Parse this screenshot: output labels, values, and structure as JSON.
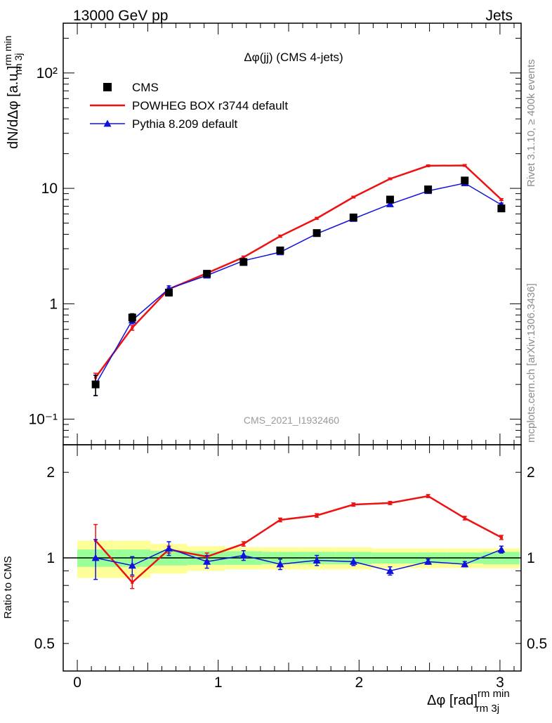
{
  "header": {
    "left": "13000 GeV pp",
    "right": "Jets",
    "side_top": "Rivet 3.1.10, ≥ 400k events",
    "side_bottom": "mcplots.cern.ch [arXiv:1306.3436]"
  },
  "chart_data": [
    {
      "type": "line",
      "title": "Δφ(jj) (CMS 4-jets)",
      "ylabel": "dN/dΔφ [a.u.]",
      "ylabel_sup": "rm min",
      "ylabel_sub": "rm 3j",
      "yscale": "log",
      "xlim": [
        -0.1,
        3.15
      ],
      "ylim": [
        0.06,
        270
      ],
      "y_ticks": [
        {
          "value": 0.1,
          "label": "10⁻¹"
        },
        {
          "value": 1,
          "label": "1"
        },
        {
          "value": 10,
          "label": "10"
        },
        {
          "value": 100,
          "label": "10²"
        }
      ],
      "watermark": "CMS_2021_I1932460",
      "legend_position": "top-left",
      "x": [
        0.13,
        0.39,
        0.65,
        0.92,
        1.18,
        1.44,
        1.7,
        1.96,
        2.22,
        2.49,
        2.75,
        3.01
      ],
      "series": [
        {
          "name": "CMS",
          "marker": "square",
          "color": "#000000",
          "values": [
            0.2,
            0.76,
            1.25,
            1.82,
            2.3,
            2.9,
            4.1,
            5.6,
            8.0,
            9.8,
            11.7,
            6.7
          ],
          "errors": [
            0.04,
            0.06,
            0.08,
            0.1,
            0.12,
            0.15,
            0.2,
            0.25,
            0.35,
            0.4,
            0.5,
            0.3
          ]
        },
        {
          "name": "POWHEG BOX r3744 default",
          "marker": "line",
          "color": "#ee1111",
          "values": [
            0.23,
            0.62,
            1.34,
            1.84,
            2.53,
            3.85,
            5.5,
            8.4,
            12.1,
            15.7,
            15.8,
            8.0
          ],
          "errors": [
            0.02,
            0.03,
            0.04,
            0.05,
            0.06,
            0.08,
            0.1,
            0.14,
            0.2,
            0.25,
            0.25,
            0.15
          ]
        },
        {
          "name": "Pythia 8.209 default",
          "marker": "triangle",
          "color": "#1111dd",
          "values": [
            0.2,
            0.72,
            1.35,
            1.76,
            2.36,
            2.8,
            4.04,
            5.45,
            7.3,
            9.5,
            11.1,
            7.2
          ],
          "errors": [
            0.04,
            0.05,
            0.08,
            0.08,
            0.1,
            0.12,
            0.15,
            0.2,
            0.25,
            0.3,
            0.35,
            0.25
          ]
        }
      ]
    },
    {
      "type": "line",
      "ylabel": "Ratio to CMS",
      "xlabel": "Δφ [rad]",
      "xlabel_sup": "rm min",
      "xlabel_sub": "rm 3j",
      "yscale": "log",
      "xlim": [
        -0.1,
        3.15
      ],
      "ylim": [
        0.4,
        2.5
      ],
      "y_ticks": [
        {
          "value": 0.5,
          "label": "0.5"
        },
        {
          "value": 1,
          "label": "1"
        },
        {
          "value": 2,
          "label": "2"
        }
      ],
      "x_ticks": [
        {
          "value": 0,
          "label": "0"
        },
        {
          "value": 1,
          "label": "1"
        },
        {
          "value": 2,
          "label": "2"
        },
        {
          "value": 3,
          "label": "3"
        }
      ],
      "x": [
        0.13,
        0.39,
        0.65,
        0.92,
        1.18,
        1.44,
        1.7,
        1.96,
        2.22,
        2.49,
        2.75,
        3.01
      ],
      "bin_edges": [
        0.0,
        0.26,
        0.52,
        0.78,
        1.05,
        1.31,
        1.57,
        1.83,
        2.09,
        2.36,
        2.62,
        2.88,
        3.14
      ],
      "band_inner": [
        0.07,
        0.07,
        0.06,
        0.055,
        0.055,
        0.05,
        0.05,
        0.05,
        0.045,
        0.045,
        0.045,
        0.05
      ],
      "band_outer": [
        0.15,
        0.15,
        0.12,
        0.1,
        0.09,
        0.09,
        0.09,
        0.09,
        0.08,
        0.08,
        0.08,
        0.08
      ],
      "series": [
        {
          "name": "POWHEG BOX r3744 default",
          "color": "#ee1111",
          "values": [
            1.15,
            0.82,
            1.07,
            1.01,
            1.12,
            1.36,
            1.41,
            1.54,
            1.56,
            1.65,
            1.38,
            1.18
          ],
          "errors": [
            0.16,
            0.04,
            0.03,
            0.03,
            0.02,
            0.02,
            0.02,
            0.02,
            0.02,
            0.02,
            0.02,
            0.02
          ]
        },
        {
          "name": "Pythia 8.209 default",
          "color": "#1111dd",
          "values": [
            1.0,
            0.94,
            1.08,
            0.97,
            1.02,
            0.95,
            0.98,
            0.97,
            0.9,
            0.97,
            0.95,
            1.07
          ],
          "errors": [
            0.16,
            0.07,
            0.06,
            0.05,
            0.04,
            0.04,
            0.04,
            0.03,
            0.03,
            0.02,
            0.02,
            0.03
          ]
        }
      ]
    }
  ]
}
